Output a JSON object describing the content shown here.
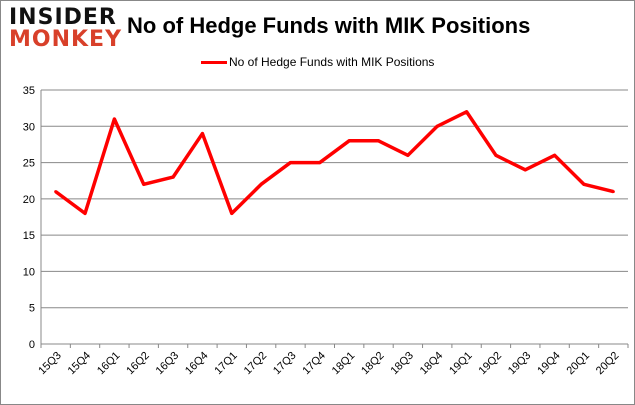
{
  "logo": {
    "line1": "INSIDER",
    "line2": "MONKEY"
  },
  "chart_data": {
    "type": "line",
    "title": "No of Hedge Funds with MIK Positions",
    "categories": [
      "15Q3",
      "15Q4",
      "16Q1",
      "16Q2",
      "16Q3",
      "16Q4",
      "17Q1",
      "17Q2",
      "17Q3",
      "17Q4",
      "18Q1",
      "18Q2",
      "18Q3",
      "18Q4",
      "19Q1",
      "19Q2",
      "19Q3",
      "19Q4",
      "20Q1",
      "20Q2"
    ],
    "series": [
      {
        "name": "No of Hedge Funds with MIK Positions",
        "color": "#ff0000",
        "values": [
          21,
          18,
          31,
          22,
          23,
          29,
          18,
          22,
          25,
          25,
          28,
          28,
          26,
          30,
          32,
          26,
          24,
          26,
          22,
          21
        ]
      }
    ],
    "ylim": [
      0,
      35
    ],
    "yticks": [
      0,
      5,
      10,
      15,
      20,
      25,
      30,
      35
    ],
    "grid": true,
    "legend": "top"
  }
}
